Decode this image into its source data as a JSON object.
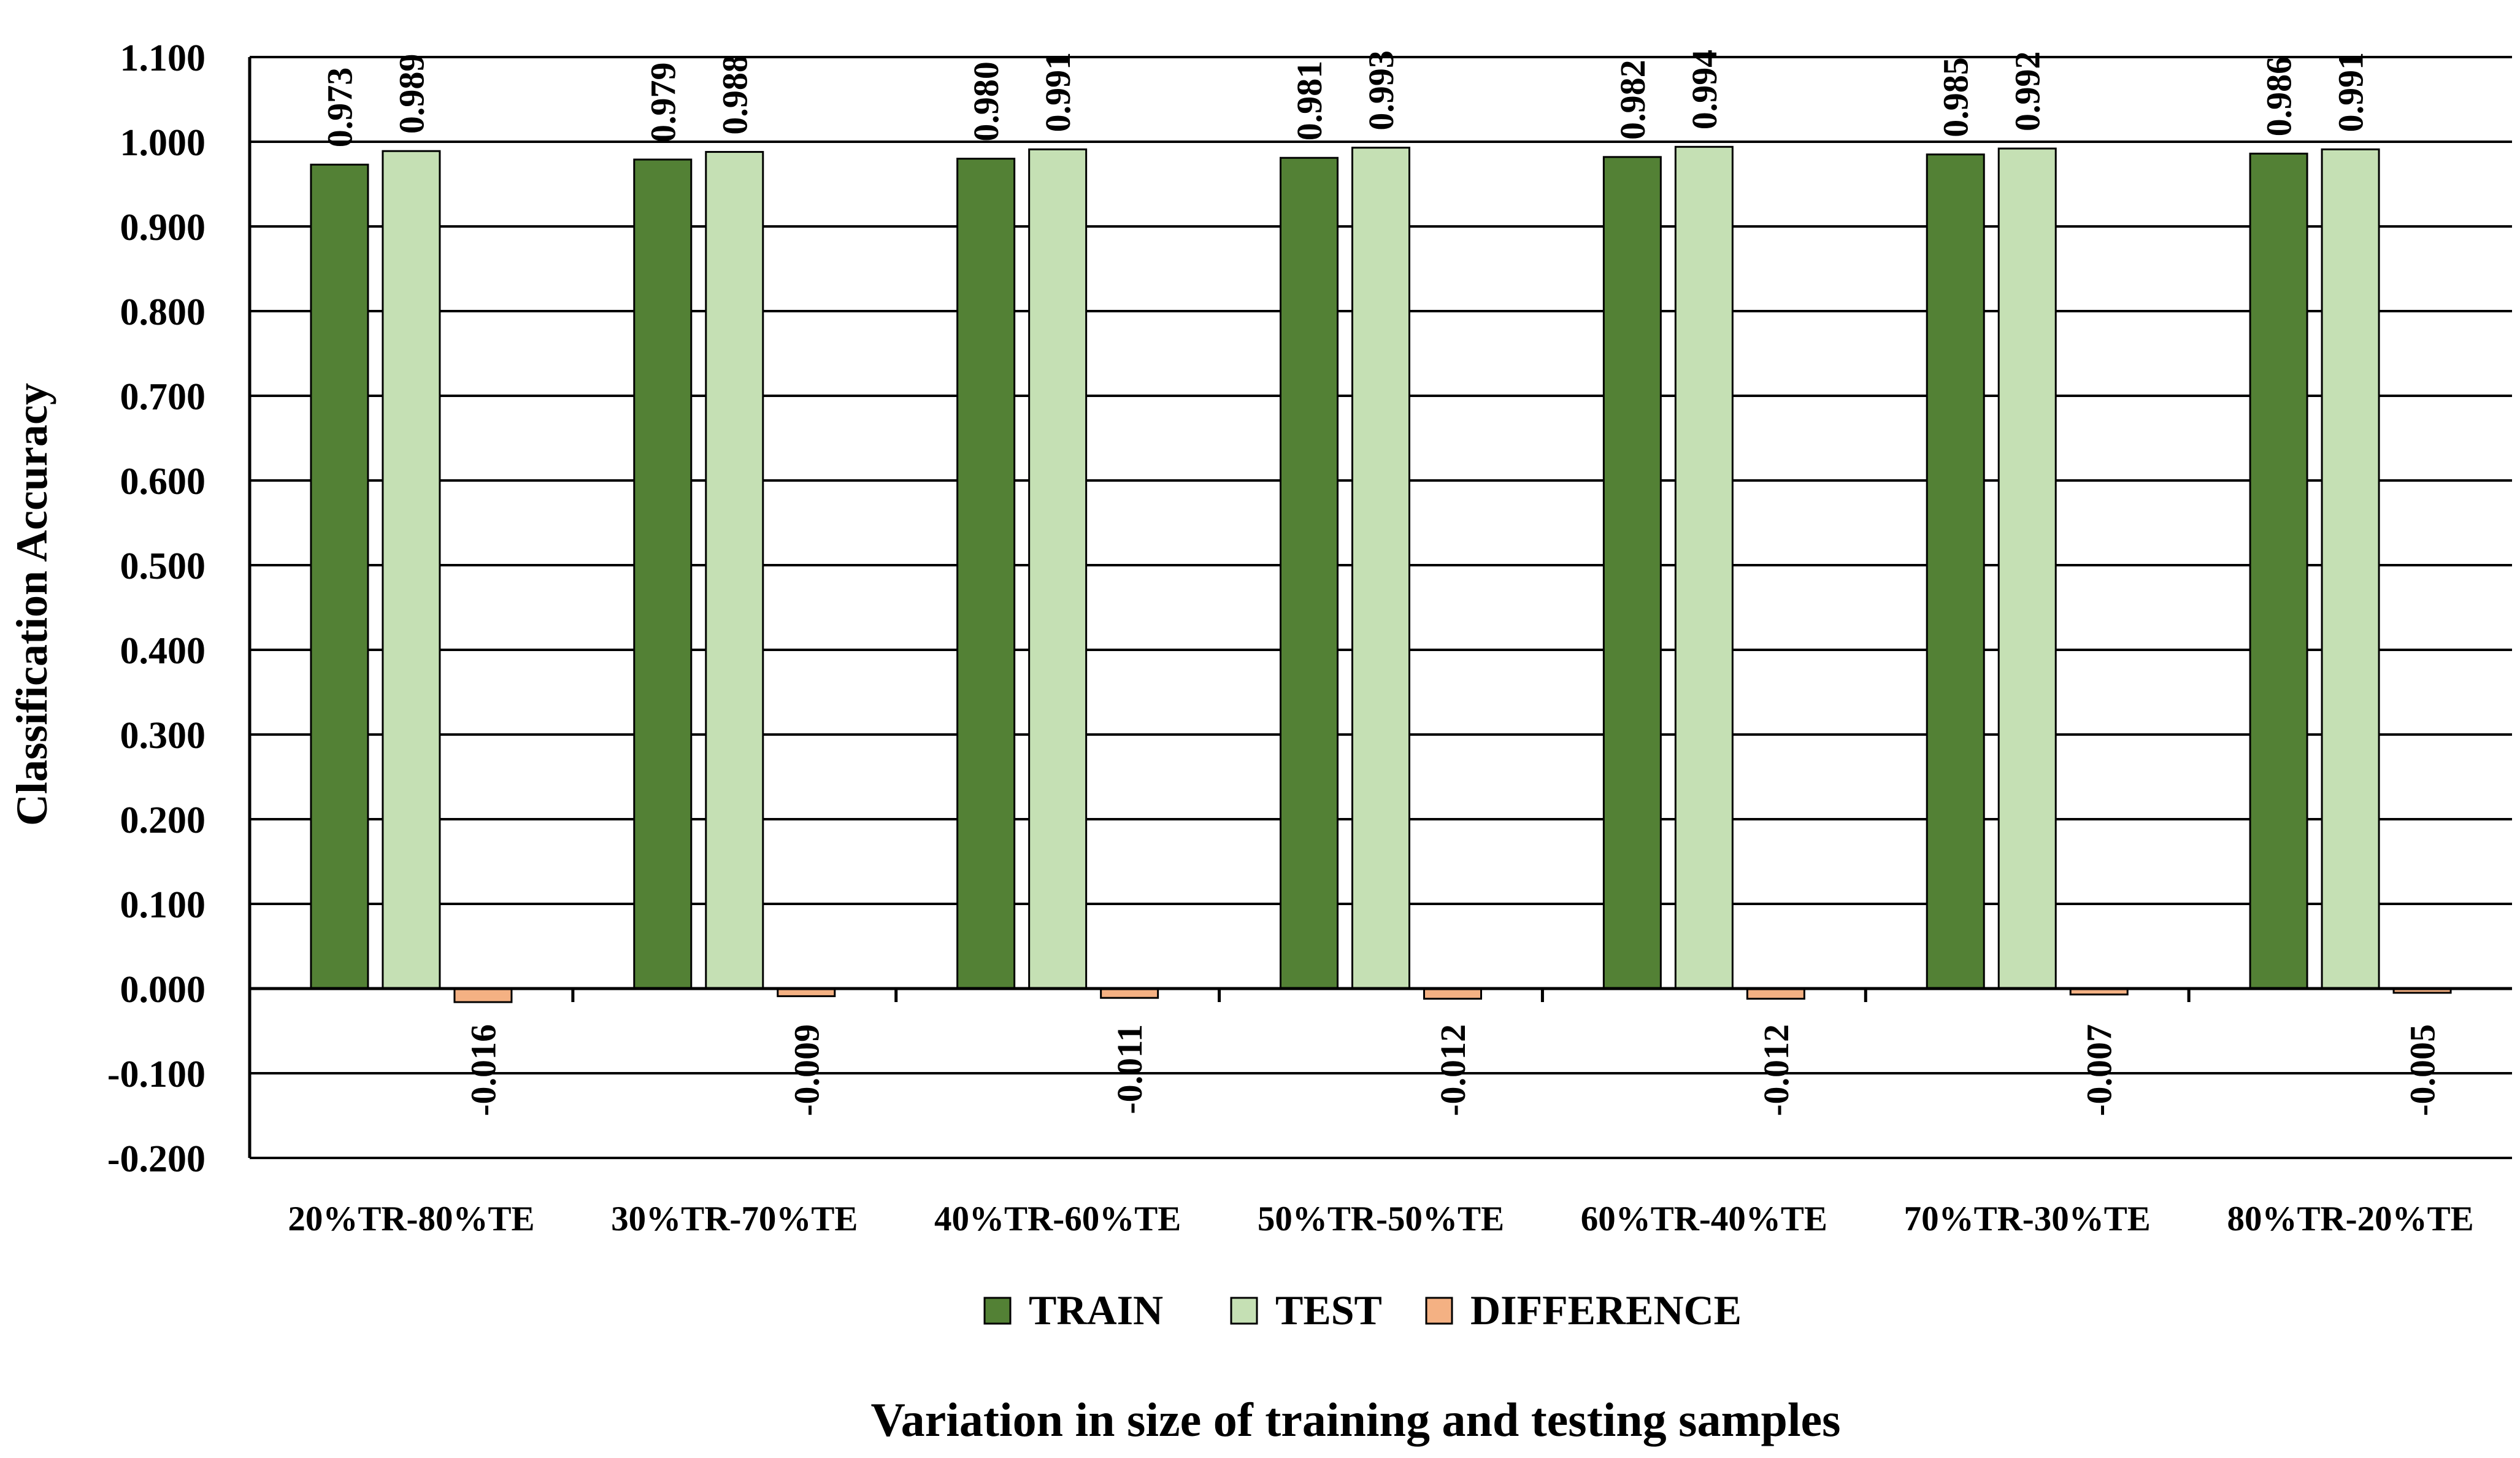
{
  "chart_data": {
    "type": "bar",
    "categories": [
      "20%TR-80%TE",
      "30%TR-70%TE",
      "40%TR-60%TE",
      "50%TR-50%TE",
      "60%TR-40%TE",
      "70%TR-30%TE",
      "80%TR-20%TE"
    ],
    "series": [
      {
        "name": "TRAIN",
        "color": "#538135",
        "values": [
          0.973,
          0.979,
          0.98,
          0.981,
          0.982,
          0.985,
          0.986
        ],
        "labels": [
          "0.973",
          "0.979",
          "0.980",
          "0.981",
          "0.982",
          "0.985",
          "0.986"
        ]
      },
      {
        "name": "TEST",
        "color": "#c5e0b4",
        "values": [
          0.989,
          0.988,
          0.991,
          0.993,
          0.994,
          0.992,
          0.991
        ],
        "labels": [
          "0.989",
          "0.988",
          "0.991",
          "0.993",
          "0.994",
          "0.992",
          "0.991"
        ]
      },
      {
        "name": "DIFFERENCE",
        "color": "#f4b183",
        "values": [
          -0.016,
          -0.009,
          -0.011,
          -0.012,
          -0.012,
          -0.007,
          -0.005
        ],
        "labels": [
          "-0.016",
          "-0.009",
          "-0.011",
          "-0.012",
          "-0.012",
          "-0.007",
          "-0.005"
        ]
      }
    ],
    "title": "",
    "xlabel": "Variation in size of training and testing samples",
    "ylabel": "Classification Accuracy",
    "ylim": [
      -0.2,
      1.1
    ],
    "yticks": [
      -0.2,
      -0.1,
      0.0,
      0.1,
      0.2,
      0.3,
      0.4,
      0.5,
      0.6,
      0.7,
      0.8,
      0.9,
      1.0,
      1.1
    ],
    "ytick_labels": [
      "-0.200",
      "-0.100",
      "0.000",
      "0.100",
      "0.200",
      "0.300",
      "0.400",
      "0.500",
      "0.600",
      "0.700",
      "0.800",
      "0.900",
      "1.000",
      "1.100"
    ],
    "grid": "horizontal",
    "legend_position": "bottom"
  }
}
